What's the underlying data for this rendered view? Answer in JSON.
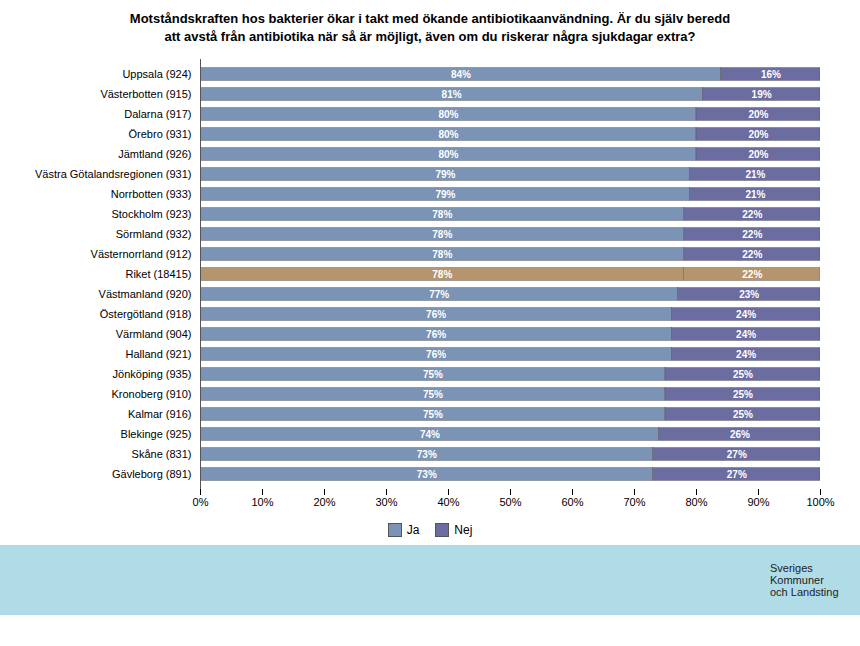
{
  "chart_data": {
    "type": "bar",
    "orientation": "horizontal",
    "stacked": true,
    "title": "Motståndskraften hos bakterier ökar i takt med ökande antibiotikaanvändning. Är du själv beredd\natt avstå från antibiotika när så är möjligt, även om du riskerar några sjukdagar extra?",
    "categories": [
      "Uppsala (924)",
      "Västerbotten (915)",
      "Dalarna (917)",
      "Örebro (931)",
      "Jämtland (926)",
      "Västra Götalandsregionen (931)",
      "Norrbotten (933)",
      "Stockholm (923)",
      "Sörmland (932)",
      "Västernorrland (912)",
      "Riket (18415)",
      "Västmanland (920)",
      "Östergötland (918)",
      "Värmland (904)",
      "Halland (921)",
      "Jönköping (935)",
      "Kronoberg (910)",
      "Kalmar (916)",
      "Blekinge (925)",
      "Skåne (831)",
      "Gävleborg (891)"
    ],
    "series": [
      {
        "name": "Ja",
        "color": "#7b93b4",
        "colors": [
          "#7b93b4",
          "#7b93b4",
          "#7b93b4",
          "#7b93b4",
          "#7b93b4",
          "#7b93b4",
          "#7b93b4",
          "#7b93b4",
          "#7b93b4",
          "#7b93b4",
          "#b5956e",
          "#7b93b4",
          "#7b93b4",
          "#7b93b4",
          "#7b93b4",
          "#7b93b4",
          "#7b93b4",
          "#7b93b4",
          "#7b93b4",
          "#7b93b4",
          "#7b93b4"
        ],
        "values": [
          84,
          81,
          80,
          80,
          80,
          79,
          79,
          78,
          78,
          78,
          78,
          77,
          76,
          76,
          76,
          75,
          75,
          75,
          74,
          73,
          73
        ],
        "value_labels": [
          "84%",
          "81%",
          "80%",
          "80%",
          "80%",
          "79%",
          "79%",
          "78%",
          "78%",
          "78%",
          "78%",
          "77%",
          "76%",
          "76%",
          "76%",
          "75%",
          "75%",
          "75%",
          "74%",
          "73%",
          "73%"
        ]
      },
      {
        "name": "Nej",
        "color": "#6b6ca0",
        "colors": [
          "#6b6ca0",
          "#6b6ca0",
          "#6b6ca0",
          "#6b6ca0",
          "#6b6ca0",
          "#6b6ca0",
          "#6b6ca0",
          "#6b6ca0",
          "#6b6ca0",
          "#6b6ca0",
          "#b5956e",
          "#6b6ca0",
          "#6b6ca0",
          "#6b6ca0",
          "#6b6ca0",
          "#6b6ca0",
          "#6b6ca0",
          "#6b6ca0",
          "#6b6ca0",
          "#6b6ca0",
          "#6b6ca0"
        ],
        "values": [
          16,
          19,
          20,
          20,
          20,
          21,
          21,
          22,
          22,
          22,
          22,
          23,
          24,
          24,
          24,
          25,
          25,
          25,
          26,
          27,
          27
        ],
        "value_labels": [
          "16%",
          "19%",
          "20%",
          "20%",
          "20%",
          "21%",
          "21%",
          "22%",
          "22%",
          "22%",
          "22%",
          "23%",
          "24%",
          "24%",
          "24%",
          "25%",
          "25%",
          "25%",
          "26%",
          "27%",
          "27%"
        ]
      }
    ],
    "xlim": [
      0,
      100
    ],
    "xticks": [
      {
        "value": 0,
        "label": "0%"
      },
      {
        "value": 10,
        "label": "10%"
      },
      {
        "value": 20,
        "label": "20%"
      },
      {
        "value": 30,
        "label": "30%"
      },
      {
        "value": 40,
        "label": "40%"
      },
      {
        "value": 50,
        "label": "50%"
      },
      {
        "value": 60,
        "label": "60%"
      },
      {
        "value": 70,
        "label": "70%"
      },
      {
        "value": 80,
        "label": "80%"
      },
      {
        "value": 90,
        "label": "90%"
      },
      {
        "value": 100,
        "label": "100%"
      }
    ],
    "data_labels": true,
    "legend": "bottom",
    "grid": false,
    "annotations": [
      "Sveriges\nKommuner\noch Landsting"
    ]
  }
}
